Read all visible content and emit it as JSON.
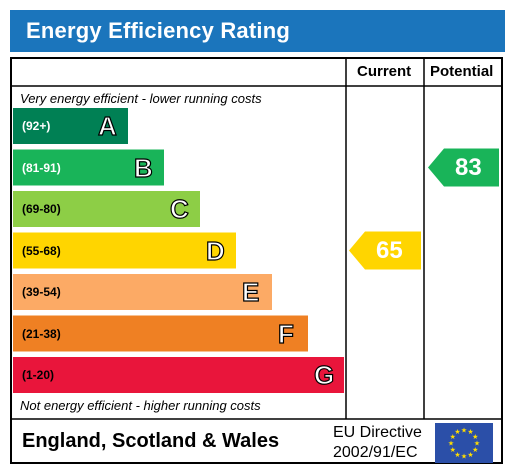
{
  "title": "Energy Efficiency Rating",
  "headers": {
    "current": "Current",
    "potential": "Potential"
  },
  "captions": {
    "top": "Very energy efficient - lower running costs",
    "bottom": "Not energy efficient - higher running costs"
  },
  "footer": {
    "region": "England, Scotland & Wales",
    "directive_line1": "EU Directive",
    "directive_line2": "2002/91/EC"
  },
  "colors": {
    "title_bar": "#1b75bc",
    "flag_blue": "#2b4fa8",
    "flag_stars": "#ffdd00"
  },
  "chart_data": {
    "type": "bar",
    "categories": [
      "A",
      "B",
      "C",
      "D",
      "E",
      "F",
      "G"
    ],
    "ranges": [
      "(92+)",
      "(81-91)",
      "(69-80)",
      "(55-68)",
      "(39-54)",
      "(21-38)",
      "(1-20)"
    ],
    "band_colors": [
      "#008054",
      "#19b459",
      "#8dce46",
      "#ffd500",
      "#fcaa65",
      "#ef8023",
      "#e9153b"
    ],
    "current": {
      "value": 65,
      "band": "D",
      "color": "#ffd500"
    },
    "potential": {
      "value": 83,
      "band": "B",
      "color": "#19b459"
    }
  }
}
